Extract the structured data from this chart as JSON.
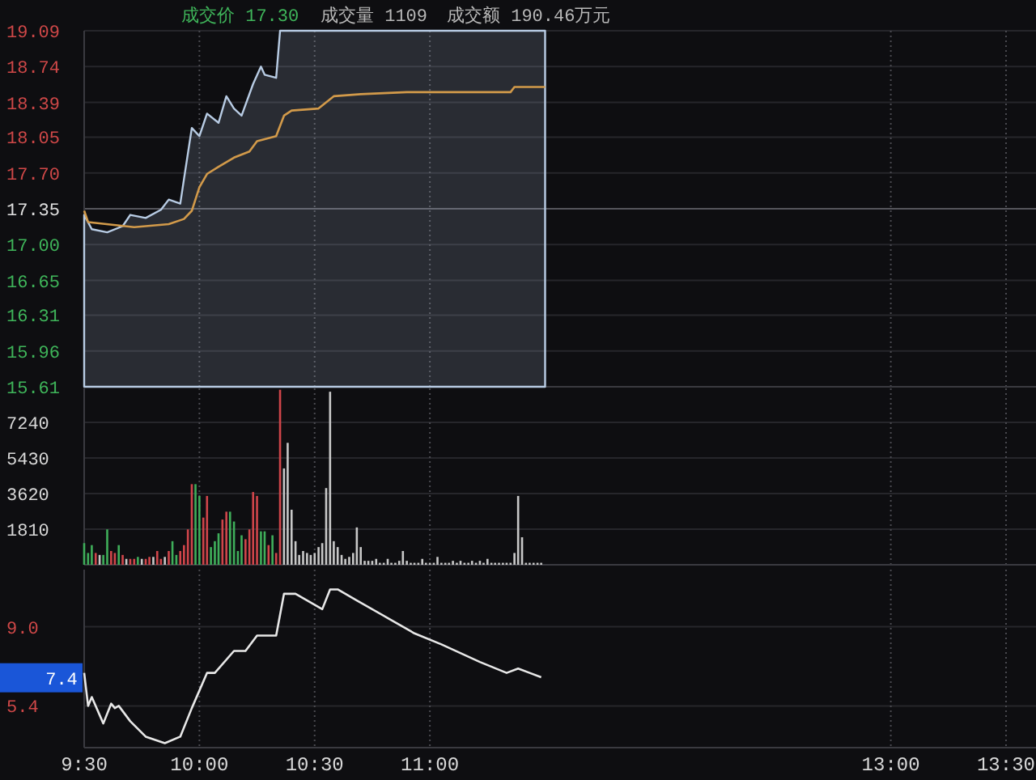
{
  "chart_data": [
    {
      "type": "area",
      "xlim": [
        9.5,
        13.63
      ],
      "ylim": [
        15.61,
        19.09
      ],
      "xticks": [
        {
          "value": 9.5,
          "label": null
        },
        {
          "value": 10,
          "label": null
        },
        {
          "value": 10.5,
          "label": null
        },
        {
          "value": 11,
          "label": null
        },
        {
          "value": 13,
          "label": null
        },
        {
          "value": 13.5,
          "label": null
        }
      ],
      "yticks": [
        19.09,
        18.74,
        18.39,
        18.05,
        {
          "value": 17.7,
          "label": "17.70"
        },
        17.35,
        {
          "value": 17,
          "label": "17.00"
        },
        16.65,
        16.31,
        15.96,
        15.61
      ],
      "tick_labels": "y",
      "grid": true,
      "ref_lines": [
        {
          "axis": "y",
          "value": 17.35
        }
      ],
      "annotations": [
        "成交价 17.30",
        "成交量 1109",
        "成交额 190.46万元"
      ],
      "series": [
        {
          "color": "#b8cce4",
          "x": [
            9.5,
            9.533,
            9.6,
            9.667,
            9.7,
            9.767,
            9.833,
            9.867,
            9.917,
            9.933,
            9.967,
            10,
            10.033,
            10.083,
            10.117,
            10.15,
            10.183,
            10.233,
            10.267,
            10.283,
            10.333,
            10.35,
            11.5
          ],
          "values": [
            17.29,
            17.15,
            17.12,
            17.18,
            17.29,
            17.26,
            17.34,
            17.44,
            17.4,
            17.64,
            18.14,
            18.06,
            18.28,
            18.19,
            18.45,
            18.33,
            18.26,
            18.57,
            18.74,
            18.66,
            18.63,
            19.09,
            19.09
          ]
        },
        {
          "type": "line",
          "color": "#d29a4a",
          "x": [
            9.5,
            9.517,
            9.717,
            9.867,
            9.933,
            9.967,
            10,
            10.033,
            10.083,
            10.15,
            10.217,
            10.25,
            10.333,
            10.367,
            10.4,
            10.517,
            10.55,
            10.583,
            10.7,
            10.9,
            11.35,
            11.367,
            11.5
          ],
          "values": [
            17.33,
            17.22,
            17.17,
            17.2,
            17.25,
            17.33,
            17.56,
            17.69,
            17.76,
            17.85,
            17.91,
            18.01,
            18.06,
            18.26,
            18.31,
            18.33,
            18.39,
            18.45,
            18.47,
            18.49,
            18.49,
            18.54,
            18.54
          ]
        }
      ]
    },
    {
      "type": "bar",
      "xlim": [
        9.5,
        13.63
      ],
      "ylim": [
        0,
        8970
      ],
      "xticks": [
        {
          "value": 9.5,
          "label": null
        },
        {
          "value": 10,
          "label": null
        },
        {
          "value": 10.5,
          "label": null
        },
        {
          "value": 11,
          "label": null
        },
        {
          "value": 13,
          "label": null
        },
        {
          "value": 13.5,
          "label": null
        }
      ],
      "yticks": [
        1810,
        3620,
        5430,
        7240
      ],
      "tick_labels": "y",
      "grid": true,
      "x": [
        9.5,
        9.517,
        9.533,
        9.55,
        9.567,
        9.583,
        9.6,
        9.617,
        9.633,
        9.65,
        9.667,
        9.683,
        9.7,
        9.717,
        9.733,
        9.75,
        9.767,
        9.783,
        9.8,
        9.817,
        9.833,
        9.85,
        9.867,
        9.883,
        9.9,
        9.917,
        9.933,
        9.95,
        9.967,
        9.983,
        10,
        10.017,
        10.033,
        10.05,
        10.067,
        10.083,
        10.1,
        10.117,
        10.133,
        10.15,
        10.167,
        10.183,
        10.2,
        10.217,
        10.233,
        10.25,
        10.267,
        10.283,
        10.3,
        10.317,
        10.333,
        10.35,
        10.367,
        10.383,
        10.4,
        10.417,
        10.433,
        10.45,
        10.467,
        10.483,
        10.5,
        10.517,
        10.533,
        10.55,
        10.567,
        10.583,
        10.6,
        10.617,
        10.633,
        10.65,
        10.667,
        10.683,
        10.7,
        10.717,
        10.733,
        10.75,
        10.767,
        10.783,
        10.8,
        10.817,
        10.833,
        10.85,
        10.867,
        10.883,
        10.9,
        10.917,
        10.933,
        10.95,
        10.967,
        10.983,
        11,
        11.017,
        11.033,
        11.05,
        11.067,
        11.083,
        11.1,
        11.117,
        11.133,
        11.15,
        11.167,
        11.183,
        11.2,
        11.217,
        11.233,
        11.25,
        11.267,
        11.283,
        11.3,
        11.317,
        11.333,
        11.35,
        11.367,
        11.383,
        11.4,
        11.417,
        11.433,
        11.45,
        11.467,
        11.483
      ],
      "values": [
        1100,
        600,
        1000,
        600,
        500,
        500,
        1800,
        700,
        600,
        1000,
        500,
        300,
        300,
        300,
        400,
        300,
        300,
        400,
        400,
        700,
        300,
        400,
        700,
        1200,
        500,
        700,
        1000,
        1800,
        4100,
        4100,
        3500,
        2400,
        3500,
        900,
        1200,
        1600,
        2300,
        2700,
        2700,
        2200,
        700,
        1500,
        1300,
        1800,
        3700,
        3500,
        1700,
        1700,
        1000,
        1500,
        600,
        8900,
        4900,
        6200,
        2800,
        1200,
        500,
        700,
        600,
        500,
        600,
        900,
        1100,
        3900,
        8800,
        1200,
        900,
        500,
        300,
        400,
        600,
        1900,
        900,
        200,
        200,
        200,
        300,
        100,
        100,
        300,
        100,
        100,
        200,
        700,
        200,
        100,
        100,
        100,
        300,
        100,
        100,
        100,
        400,
        100,
        100,
        100,
        200,
        100,
        200,
        100,
        100,
        200,
        100,
        200,
        100,
        300,
        100,
        100,
        100,
        100,
        100,
        100,
        600,
        3500,
        1400,
        100,
        100,
        100,
        100,
        100
      ],
      "colors": [
        "#3fae5a",
        "#3fae5a",
        "#3fae5a",
        "#d0454a",
        "#c8c8c8",
        "#3fae5a",
        "#3fae5a",
        "#d0454a",
        "#d0454a",
        "#3fae5a",
        "#d0454a",
        "#c8c8c8",
        "#d0454a",
        "#d0454a",
        "#3fae5a",
        "#c8c8c8",
        "#d0454a",
        "#d0454a",
        "#c8c8c8",
        "#d0454a",
        "#d0454a",
        "#c8c8c8",
        "#d0454a",
        "#3fae5a",
        "#3fae5a",
        "#d0454a",
        "#d0454a",
        "#d0454a",
        "#d0454a",
        "#3fae5a",
        "#3fae5a",
        "#d0454a",
        "#d0454a",
        "#3fae5a",
        "#3fae5a",
        "#3fae5a",
        "#d0454a",
        "#d0454a",
        "#3fae5a",
        "#3fae5a",
        "#3fae5a",
        "#3fae5a",
        "#d0454a",
        "#d0454a",
        "#d0454a",
        "#d0454a",
        "#3fae5a",
        "#3fae5a",
        "#d0454a",
        "#3fae5a",
        "#d0454a",
        "#d0454a",
        "#c8c8c8",
        "#c8c8c8",
        "#c8c8c8",
        "#c8c8c8",
        "#c8c8c8",
        "#c8c8c8",
        "#c8c8c8",
        "#c8c8c8",
        "#c8c8c8",
        "#c8c8c8",
        "#c8c8c8",
        "#c8c8c8",
        "#c8c8c8",
        "#c8c8c8",
        "#c8c8c8",
        "#c8c8c8",
        "#c8c8c8",
        "#c8c8c8",
        "#c8c8c8",
        "#c8c8c8",
        "#c8c8c8",
        "#c8c8c8",
        "#c8c8c8",
        "#c8c8c8",
        "#c8c8c8",
        "#c8c8c8",
        "#c8c8c8",
        "#c8c8c8",
        "#c8c8c8",
        "#c8c8c8",
        "#c8c8c8",
        "#c8c8c8",
        "#c8c8c8",
        "#c8c8c8",
        "#c8c8c8",
        "#c8c8c8",
        "#c8c8c8",
        "#c8c8c8",
        "#c8c8c8",
        "#c8c8c8",
        "#c8c8c8",
        "#c8c8c8",
        "#c8c8c8",
        "#c8c8c8",
        "#c8c8c8",
        "#c8c8c8",
        "#c8c8c8",
        "#c8c8c8",
        "#c8c8c8",
        "#c8c8c8",
        "#c8c8c8",
        "#c8c8c8",
        "#c8c8c8",
        "#c8c8c8",
        "#c8c8c8",
        "#c8c8c8",
        "#c8c8c8",
        "#c8c8c8",
        "#c8c8c8",
        "#c8c8c8",
        "#c8c8c8",
        "#c8c8c8",
        "#c8c8c8",
        "#c8c8c8",
        "#c8c8c8",
        "#c8c8c8",
        "#c8c8c8",
        "#c8c8c8"
      ]
    },
    {
      "type": "line",
      "xlim": [
        9.5,
        13.63
      ],
      "ylim": [
        3.5,
        11.6
      ],
      "xticks": [
        {
          "value": 9.5,
          "label": "9:30"
        },
        {
          "value": 10,
          "label": "10:00"
        },
        {
          "value": 10.5,
          "label": "10:30"
        },
        {
          "value": 11,
          "label": "11:00"
        },
        {
          "value": 13,
          "label": "13:00"
        },
        {
          "value": 13.5,
          "label": "13:30"
        }
      ],
      "yticks": [
        {
          "value": 9,
          "label": "9.0"
        },
        5.4
      ],
      "grid": true,
      "color": "#e8e8e8",
      "annotations": [
        "7.4"
      ],
      "x": [
        9.5,
        9.517,
        9.533,
        9.583,
        9.617,
        9.633,
        9.65,
        9.7,
        9.767,
        9.85,
        9.917,
        9.967,
        10.033,
        10.067,
        10.15,
        10.2,
        10.25,
        10.333,
        10.367,
        10.417,
        10.533,
        10.567,
        10.6,
        10.683,
        10.817,
        10.933,
        11.05,
        11.217,
        11.333,
        11.383,
        11.433,
        11.483
      ],
      "values": [
        6.9,
        5.4,
        5.8,
        4.6,
        5.5,
        5.3,
        5.4,
        4.7,
        4.0,
        3.7,
        4.0,
        5.3,
        6.9,
        6.9,
        7.9,
        7.9,
        8.6,
        8.6,
        10.5,
        10.5,
        9.8,
        10.7,
        10.7,
        10.2,
        9.4,
        8.7,
        8.2,
        7.4,
        6.9,
        7.1,
        6.9,
        6.7
      ]
    }
  ]
}
